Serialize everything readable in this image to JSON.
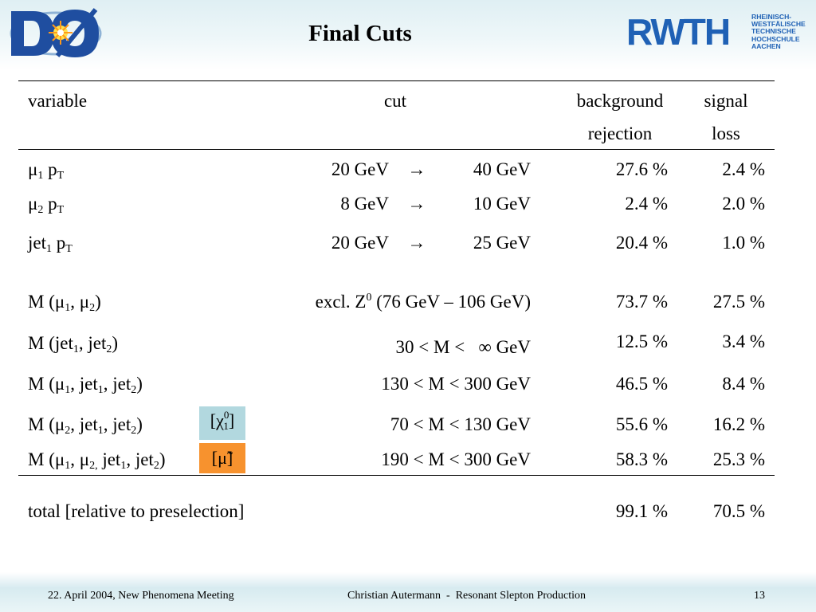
{
  "slide": {
    "title": "Final Cuts",
    "logo_left_text": "DØ",
    "logo_right_main": "RWTH",
    "logo_right_sub": [
      "RHEINISCH-",
      "WESTFÄLISCHE",
      "TECHNISCHE",
      "HOCHSCHULE",
      "AACHEN"
    ]
  },
  "table": {
    "headers": {
      "variable": "variable",
      "cut": "cut",
      "bg_line1": "background",
      "bg_line2": "rejection",
      "sig_line1": "signal",
      "sig_line2": "loss"
    },
    "rows": [
      {
        "var_a": "μ",
        "var_a_sub": "1",
        "var_b": " p",
        "var_b_sub": "T",
        "cut_from": "20 GeV",
        "arrow": "→",
        "cut_to": "40 GeV",
        "bg": "27.6 %",
        "sig": "2.4 %"
      },
      {
        "var_a": "μ",
        "var_a_sub": "2",
        "var_b": " p",
        "var_b_sub": "T",
        "cut_from": "8 GeV",
        "arrow": "→",
        "cut_to": "10 GeV",
        "bg": "2.4 %",
        "sig": "2.0 %"
      },
      {
        "var_a": "jet",
        "var_a_sub": "1",
        "var_b": " p",
        "var_b_sub": "T",
        "cut_from": "20 GeV",
        "arrow": "→",
        "cut_to": "25 GeV",
        "bg": "20.4 %",
        "sig": "1.0 %"
      },
      {
        "cut_pre": "excl. Z",
        "cut_sup": "0",
        "cut_post": " (76 GeV – 106 GeV)",
        "bg": "73.7 %",
        "sig": "27.5 %"
      },
      {
        "cut": "30 < M <   ∞ GeV",
        "bg": "12.5 %",
        "sig": "3.4 %"
      },
      {
        "cut": "130 < M < 300 GeV",
        "bg": "46.5 %",
        "sig": "8.4 %"
      },
      {
        "cut": "70 < M < 130 GeV",
        "bg": "55.6 %",
        "sig": "16.2 %",
        "tag_pre": "[χ",
        "tag_sup": "0",
        "tag_sub": "1",
        "tag_post": "]"
      },
      {
        "cut": "190 < M < 300 GeV",
        "bg": "58.3 %",
        "sig": "25.3 %",
        "tag": "[μ̃]"
      }
    ],
    "mass_labels": {
      "m": "M (",
      "mu": "μ",
      "jet": "jet",
      "s1": "1",
      "s2": "2",
      "comma": ", ",
      "comma_tight": ",",
      "close": ")"
    },
    "total": {
      "label": "total [relative to preselection]",
      "bg": "99.1 %",
      "sig": "70.5 %"
    }
  },
  "footer": {
    "left": "22. April 2004, New Phenomena Meeting",
    "center": "Christian Autermann  -  Resonant Slepton Production",
    "page": "13"
  },
  "colors": {
    "chi_tag_bg": "#b2d8df",
    "smuon_tag_bg": "#f7922e",
    "rwth_blue": "#1f61b5"
  }
}
